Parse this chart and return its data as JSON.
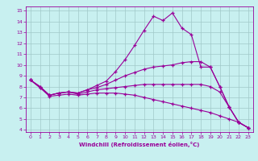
{
  "xlabel": "Windchill (Refroidissement éolien,°C)",
  "background_color": "#c8f0f0",
  "grid_color": "#a0c8c8",
  "line_color": "#990099",
  "xlim": [
    -0.5,
    23.5
  ],
  "ylim": [
    3.8,
    15.4
  ],
  "xticks": [
    0,
    1,
    2,
    3,
    4,
    5,
    6,
    7,
    8,
    9,
    10,
    11,
    12,
    13,
    14,
    15,
    16,
    17,
    18,
    19,
    20,
    21,
    22,
    23
  ],
  "yticks": [
    4,
    5,
    6,
    7,
    8,
    9,
    10,
    11,
    12,
    13,
    14,
    15
  ],
  "lines": [
    [
      8.6,
      8.0,
      7.2,
      7.4,
      7.5,
      7.4,
      7.7,
      8.1,
      8.5,
      9.4,
      10.5,
      11.8,
      13.2,
      14.5,
      14.1,
      14.8,
      13.4,
      12.8,
      9.8,
      9.8,
      8.0,
      6.1,
      4.7,
      4.2
    ],
    [
      8.6,
      8.0,
      7.2,
      7.4,
      7.5,
      7.4,
      7.7,
      7.9,
      8.2,
      8.6,
      9.0,
      9.3,
      9.6,
      9.8,
      9.9,
      10.0,
      10.2,
      10.3,
      10.3,
      9.8,
      8.0,
      6.1,
      4.7,
      4.2
    ],
    [
      8.6,
      7.9,
      7.2,
      7.4,
      7.5,
      7.3,
      7.5,
      7.7,
      7.8,
      7.9,
      8.0,
      8.1,
      8.2,
      8.2,
      8.2,
      8.2,
      8.2,
      8.2,
      8.2,
      8.0,
      7.5,
      6.1,
      4.7,
      4.2
    ],
    [
      8.6,
      7.9,
      7.1,
      7.2,
      7.3,
      7.2,
      7.3,
      7.4,
      7.4,
      7.4,
      7.3,
      7.2,
      7.0,
      6.8,
      6.6,
      6.4,
      6.2,
      6.0,
      5.8,
      5.6,
      5.3,
      5.0,
      4.7,
      4.2
    ]
  ]
}
